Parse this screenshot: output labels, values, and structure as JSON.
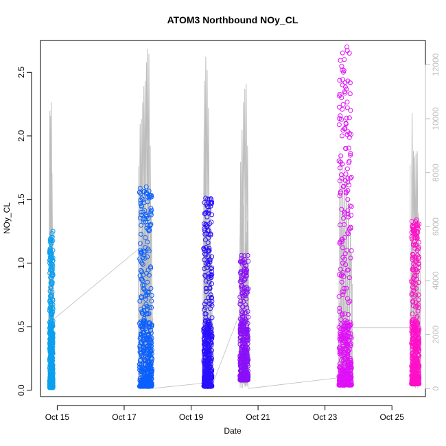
{
  "chart_data": {
    "type": "scatter",
    "title": "ATOM3 Northbound NOy_CL",
    "xlabel": "Date",
    "ylabel": "NOy_CL",
    "x_axis": {
      "type": "date",
      "range": [
        "2017-10-14T12:00",
        "2017-10-26T00:00"
      ],
      "ticks": [
        "2017-10-15",
        "2017-10-17",
        "2017-10-19",
        "2017-10-21",
        "2017-10-23",
        "2017-10-25"
      ],
      "tick_labels": [
        "Oct 15",
        "Oct 17",
        "Oct 19",
        "Oct 21",
        "Oct 23",
        "Oct 25"
      ]
    },
    "y_axis_left": {
      "range": [
        -0.05,
        2.75
      ],
      "ticks": [
        0.0,
        0.5,
        1.0,
        1.5,
        2.0,
        2.5
      ],
      "tick_labels": [
        "0.0",
        "0.5",
        "1.0",
        "1.5",
        "2.0",
        "2.5"
      ]
    },
    "y_axis_right": {
      "label": "",
      "color": "#bdbdbd",
      "range": [
        -300,
        12900
      ],
      "ticks": [
        0,
        2000,
        4000,
        6000,
        8000,
        10000,
        12000
      ],
      "tick_labels": [
        "0",
        "2000",
        "4000",
        "6000",
        "8000",
        "10000",
        "12000"
      ]
    },
    "grid": false,
    "legend": "none",
    "series": [
      {
        "marker": "open-circle",
        "color": "#0aa0f0",
        "date": "2017-10-14",
        "hours": [
          18.5,
          21.0
        ],
        "y_min": 0.02,
        "y_max": 1.25,
        "y_samples": [
          0.02,
          0.04,
          0.06,
          0.1,
          0.15,
          0.2,
          0.25,
          0.3,
          0.35,
          0.4,
          0.45,
          0.5,
          0.55,
          0.6,
          0.65,
          0.7,
          0.75,
          0.8,
          0.85,
          0.9,
          0.95,
          1.0,
          1.05,
          1.1,
          1.15,
          1.2,
          1.25
        ]
      },
      {
        "marker": "open-circle",
        "color": "#0a60ff",
        "date": "2017-10-17",
        "hours": [
          11.0,
          20.0
        ],
        "y_min": 0.03,
        "y_max": 1.6,
        "y_samples": [
          0.03,
          0.05,
          0.08,
          0.1,
          0.15,
          0.2,
          0.25,
          0.3,
          0.35,
          0.4,
          0.45,
          0.5,
          0.55,
          0.6,
          0.65,
          0.7,
          0.75,
          0.8,
          0.85,
          0.9,
          1.0,
          1.1,
          1.2,
          1.3,
          1.35,
          1.4,
          1.52,
          1.56,
          1.6
        ]
      },
      {
        "marker": "open-circle",
        "color": "#2a10ff",
        "date": "2017-10-19",
        "hours": [
          9.0,
          15.0
        ],
        "y_min": 0.03,
        "y_max": 1.51,
        "y_samples": [
          0.03,
          0.05,
          0.08,
          0.1,
          0.15,
          0.2,
          0.25,
          0.3,
          0.35,
          0.4,
          0.45,
          0.5,
          0.55,
          0.6,
          0.65,
          0.7,
          0.75,
          0.8,
          0.85,
          0.9,
          1.0,
          1.05,
          1.1,
          1.2,
          1.3,
          1.38,
          1.44,
          1.48,
          1.51
        ]
      },
      {
        "marker": "open-circle",
        "color": "#8a10f8",
        "date": "2017-10-20",
        "hours": [
          11.0,
          17.0
        ],
        "y_min": 0.08,
        "y_max": 1.06,
        "y_samples": [
          0.08,
          0.1,
          0.12,
          0.15,
          0.2,
          0.25,
          0.3,
          0.35,
          0.4,
          0.45,
          0.5,
          0.55,
          0.58,
          0.6,
          0.62,
          0.65,
          0.7,
          0.76,
          1.06
        ]
      },
      {
        "marker": "open-circle",
        "color": "#e010f8",
        "date": "2017-10-23",
        "hours": [
          10.0,
          19.0
        ],
        "y_min": 0.04,
        "y_max": 2.7,
        "y_samples": [
          0.04,
          0.06,
          0.1,
          0.15,
          0.2,
          0.25,
          0.3,
          0.35,
          0.4,
          0.5,
          0.6,
          0.7,
          0.8,
          0.85,
          0.9,
          1.0,
          1.1,
          1.2,
          1.3,
          1.4,
          1.5,
          1.6,
          1.7,
          1.8,
          1.9,
          2.0,
          2.1,
          2.2,
          2.3,
          2.4,
          2.5,
          2.6,
          2.65,
          2.7
        ]
      },
      {
        "marker": "open-circle",
        "color": "#ff10c8",
        "date": "2017-10-25",
        "hours": [
          14.0,
          19.5
        ],
        "y_min": 0.05,
        "y_max": 1.34,
        "y_samples": [
          0.05,
          0.08,
          0.1,
          0.15,
          0.2,
          0.25,
          0.3,
          0.35,
          0.4,
          0.45,
          0.5,
          0.55,
          0.6,
          0.65,
          0.7,
          0.75,
          0.8,
          0.85,
          0.9,
          0.95,
          1.0,
          1.05,
          1.1,
          1.15,
          1.2,
          1.25,
          1.3,
          1.34
        ]
      }
    ],
    "gray_line": {
      "axis": "right",
      "color": "#bdbdbd",
      "description_units": "right-axis values",
      "flights": [
        {
          "date": "2017-10-14",
          "hours": [
            18.5,
            21.0
          ],
          "peaks": [
            10300,
            10100,
            10600,
            8000,
            4500
          ]
        },
        {
          "date": "2017-10-17",
          "hours": [
            11.0,
            20.0
          ],
          "peaks": [
            9800,
            10000,
            10600,
            11200,
            11400,
            12100,
            12600,
            12400,
            9000,
            6500
          ]
        },
        {
          "date": "2017-10-19",
          "hours": [
            9.0,
            15.0
          ],
          "peaks": [
            11400,
            12300,
            11800,
            10400,
            7000,
            5000
          ]
        },
        {
          "date": "2017-10-20",
          "hours": [
            11.0,
            17.0
          ],
          "peaks": [
            8400,
            9600,
            10600,
            11100,
            11300,
            9000
          ]
        },
        {
          "date": "2017-10-23",
          "hours": [
            10.0,
            19.0
          ],
          "peaks": [
            8800,
            8500,
            8200,
            7900,
            7000,
            6000
          ]
        },
        {
          "date": "2017-10-25",
          "hours": [
            14.0,
            19.5
          ],
          "peaks": [
            10200,
            8800,
            8600,
            8700,
            8800,
            6500
          ]
        }
      ],
      "connectors": [
        {
          "from": [
            "2017-10-14T21:00",
            2550
          ],
          "to": [
            "2017-10-17T11:00",
            5200
          ]
        },
        {
          "from": [
            "2017-10-17T20:00",
            0
          ],
          "to": [
            "2017-10-19T09:00",
            200
          ]
        },
        {
          "from": [
            "2017-10-19T15:00",
            100
          ],
          "to": [
            "2017-10-20T11:00",
            2800
          ]
        },
        {
          "from": [
            "2017-10-20T17:00",
            0
          ],
          "to": [
            "2017-10-23T10:00",
            400
          ]
        },
        {
          "from": [
            "2017-10-23T19:00",
            2250
          ],
          "to": [
            "2017-10-25T14:00",
            2250
          ]
        }
      ]
    }
  }
}
